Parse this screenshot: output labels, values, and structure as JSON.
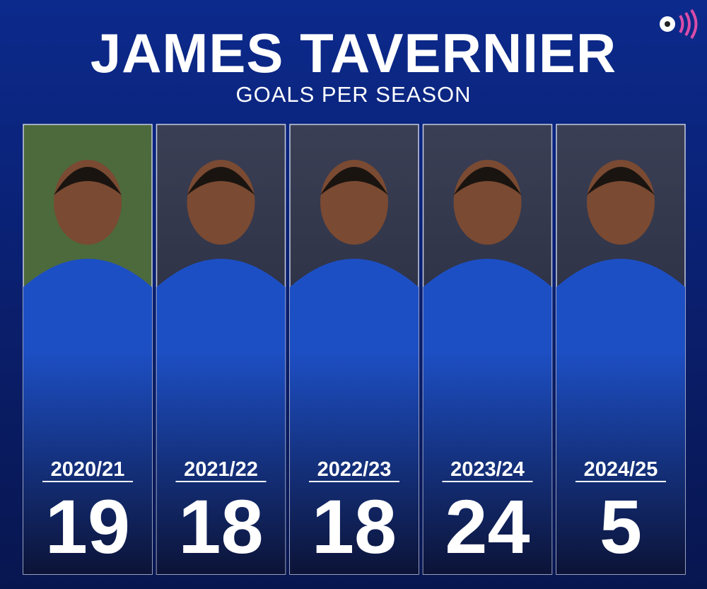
{
  "header": {
    "title": "JAMES TAVERNIER",
    "subtitle": "GOALS PER SEASON"
  },
  "panels": [
    {
      "season": "2020/21",
      "goals": 19
    },
    {
      "season": "2021/22",
      "goals": 18
    },
    {
      "season": "2022/23",
      "goals": 18
    },
    {
      "season": "2023/24",
      "goals": 24
    },
    {
      "season": "2024/25",
      "goals": 5
    }
  ]
}
